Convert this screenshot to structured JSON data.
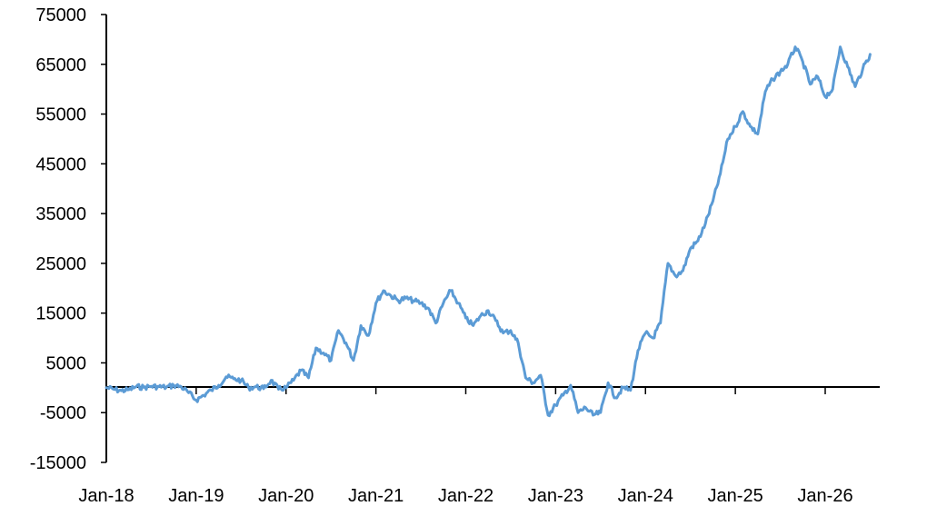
{
  "chart_data": {
    "type": "line",
    "title": "",
    "xlabel": "",
    "ylabel": "",
    "ylim": [
      -15000,
      75000
    ],
    "yticks": [
      -15000,
      -5000,
      5000,
      15000,
      25000,
      35000,
      45000,
      55000,
      65000,
      75000
    ],
    "xlim": [
      "2018-01",
      "2026-08"
    ],
    "xticks": [
      {
        "date": "2018-01",
        "label": "Jan-18"
      },
      {
        "date": "2019-01",
        "label": "Jan-19"
      },
      {
        "date": "2020-01",
        "label": "Jan-20"
      },
      {
        "date": "2021-01",
        "label": "Jan-21"
      },
      {
        "date": "2022-01",
        "label": "Jan-22"
      },
      {
        "date": "2023-01",
        "label": "Jan-23"
      },
      {
        "date": "2024-01",
        "label": "Jan-24"
      },
      {
        "date": "2025-01",
        "label": "Jan-25"
      },
      {
        "date": "2026-01",
        "label": "Jan-26"
      }
    ],
    "grid": false,
    "legend": "none",
    "series": [
      {
        "color": "#5B9BD5",
        "points": [
          [
            "2018-01",
            0
          ],
          [
            "2018-02",
            -300
          ],
          [
            "2018-03",
            -600
          ],
          [
            "2018-04",
            -400
          ],
          [
            "2018-05",
            200
          ],
          [
            "2018-06",
            100
          ],
          [
            "2018-07",
            300
          ],
          [
            "2018-08",
            200
          ],
          [
            "2018-09",
            100
          ],
          [
            "2018-10",
            500
          ],
          [
            "2018-11",
            200
          ],
          [
            "2018-12",
            -1000
          ],
          [
            "2019-01",
            -2500
          ],
          [
            "2019-02",
            -1500
          ],
          [
            "2019-03",
            -500
          ],
          [
            "2019-04",
            500
          ],
          [
            "2019-05",
            2200
          ],
          [
            "2019-06",
            1800
          ],
          [
            "2019-07",
            1500
          ],
          [
            "2019-08",
            0
          ],
          [
            "2019-09",
            200
          ],
          [
            "2019-10",
            -200
          ],
          [
            "2019-11",
            1500
          ],
          [
            "2019-12",
            -300
          ],
          [
            "2020-01",
            0
          ],
          [
            "2020-02",
            1500
          ],
          [
            "2020-03",
            3500
          ],
          [
            "2020-04",
            2000
          ],
          [
            "2020-05",
            8000
          ],
          [
            "2020-06",
            7000
          ],
          [
            "2020-07",
            5500
          ],
          [
            "2020-08",
            11500
          ],
          [
            "2020-09",
            9000
          ],
          [
            "2020-10",
            5500
          ],
          [
            "2020-11",
            12500
          ],
          [
            "2020-12",
            10500
          ],
          [
            "2021-01",
            17000
          ],
          [
            "2021-02",
            19500
          ],
          [
            "2021-03",
            18500
          ],
          [
            "2021-04",
            17500
          ],
          [
            "2021-05",
            18000
          ],
          [
            "2021-06",
            17500
          ],
          [
            "2021-07",
            17000
          ],
          [
            "2021-08",
            16000
          ],
          [
            "2021-09",
            13000
          ],
          [
            "2021-10",
            17000
          ],
          [
            "2021-11",
            19500
          ],
          [
            "2021-12",
            17000
          ],
          [
            "2022-01",
            14000
          ],
          [
            "2022-02",
            12500
          ],
          [
            "2022-03",
            14500
          ],
          [
            "2022-04",
            15500
          ],
          [
            "2022-05",
            13500
          ],
          [
            "2022-06",
            11000
          ],
          [
            "2022-07",
            11500
          ],
          [
            "2022-08",
            9000
          ],
          [
            "2022-09",
            2000
          ],
          [
            "2022-10",
            1000
          ],
          [
            "2022-11",
            2500
          ],
          [
            "2022-12",
            -5500
          ],
          [
            "2023-01",
            -3500
          ],
          [
            "2023-02",
            -1500
          ],
          [
            "2023-03",
            500
          ],
          [
            "2023-04",
            -5000
          ],
          [
            "2023-05",
            -4000
          ],
          [
            "2023-06",
            -5500
          ],
          [
            "2023-07",
            -5000
          ],
          [
            "2023-08",
            1000
          ],
          [
            "2023-09",
            -2000
          ],
          [
            "2023-10",
            0
          ],
          [
            "2023-11",
            -500
          ],
          [
            "2023-12",
            7500
          ],
          [
            "2024-01",
            11000
          ],
          [
            "2024-02",
            10000
          ],
          [
            "2024-03",
            13000
          ],
          [
            "2024-04",
            25000
          ],
          [
            "2024-05",
            22500
          ],
          [
            "2024-06",
            23500
          ],
          [
            "2024-07",
            28000
          ],
          [
            "2024-08",
            29500
          ],
          [
            "2024-09",
            33000
          ],
          [
            "2024-10",
            37500
          ],
          [
            "2024-11",
            43000
          ],
          [
            "2024-12",
            50000
          ],
          [
            "2025-01",
            52500
          ],
          [
            "2025-02",
            55500
          ],
          [
            "2025-03",
            52500
          ],
          [
            "2025-04",
            51000
          ],
          [
            "2025-05",
            59500
          ],
          [
            "2025-06",
            62000
          ],
          [
            "2025-07",
            63500
          ],
          [
            "2025-08",
            65000
          ],
          [
            "2025-09",
            68500
          ],
          [
            "2025-10",
            65500
          ],
          [
            "2025-11",
            61000
          ],
          [
            "2025-12",
            62500
          ],
          [
            "2026-01",
            58500
          ],
          [
            "2026-02",
            60000
          ],
          [
            "2026-03",
            68500
          ],
          [
            "2026-04",
            64500
          ],
          [
            "2026-05",
            60500
          ],
          [
            "2026-06",
            64000
          ],
          [
            "2026-07",
            67000
          ]
        ]
      }
    ]
  }
}
